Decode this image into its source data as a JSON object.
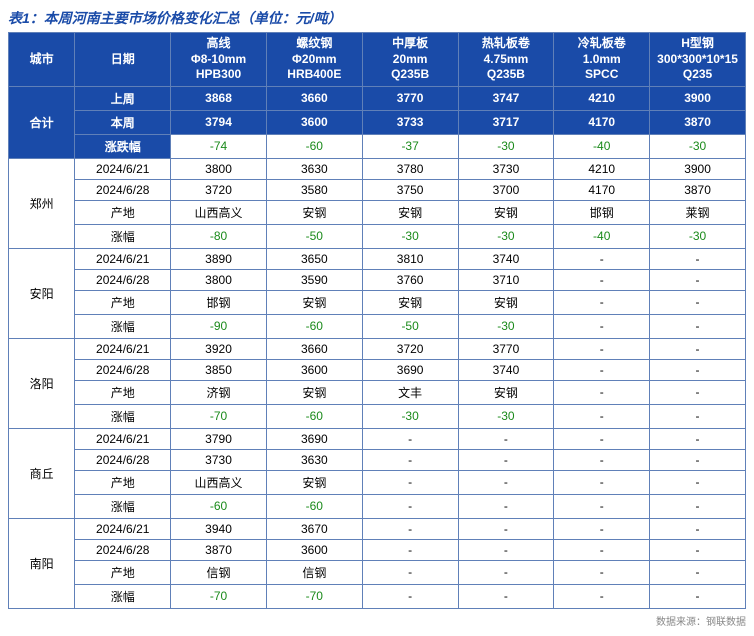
{
  "title": "表1：本周河南主要市场价格变化汇总（单位：元/吨）",
  "source": "数据来源：钢联数据",
  "headers": {
    "city": "城市",
    "date": "日期",
    "p1": "高线\nΦ8-10mm\nHPB300",
    "p2": "螺纹钢\nΦ20mm\nHRB400E",
    "p3": "中厚板\n20mm\nQ235B",
    "p4": "热轧板卷\n4.75mm\nQ235B",
    "p5": "冷轧板卷\n1.0mm\nSPCC",
    "p6": "H型钢\n300*300*10*15\nQ235"
  },
  "summary": {
    "label": "合计",
    "rows": {
      "last": {
        "label": "上周",
        "v": [
          "3868",
          "3660",
          "3770",
          "3747",
          "4210",
          "3900"
        ]
      },
      "this": {
        "label": "本周",
        "v": [
          "3794",
          "3600",
          "3733",
          "3717",
          "4170",
          "3870"
        ]
      },
      "diff": {
        "label": "涨跌幅",
        "v": [
          "-74",
          "-60",
          "-37",
          "-30",
          "-40",
          "-30"
        ]
      }
    }
  },
  "rowLabels": {
    "r1": "2024/6/21",
    "r2": "2024/6/28",
    "r3": "产地",
    "r4": "涨幅"
  },
  "cities": [
    {
      "name": "郑州",
      "r1": [
        "3800",
        "3630",
        "3780",
        "3730",
        "4210",
        "3900"
      ],
      "r2": [
        "3720",
        "3580",
        "3750",
        "3700",
        "4170",
        "3870"
      ],
      "r3": [
        "山西高义",
        "安钢",
        "安钢",
        "安钢",
        "邯钢",
        "莱钢"
      ],
      "r4": [
        "-80",
        "-50",
        "-30",
        "-30",
        "-40",
        "-30"
      ]
    },
    {
      "name": "安阳",
      "r1": [
        "3890",
        "3650",
        "3810",
        "3740",
        "-",
        "-"
      ],
      "r2": [
        "3800",
        "3590",
        "3760",
        "3710",
        "-",
        "-"
      ],
      "r3": [
        "邯钢",
        "安钢",
        "安钢",
        "安钢",
        "-",
        "-"
      ],
      "r4": [
        "-90",
        "-60",
        "-50",
        "-30",
        "-",
        "-"
      ]
    },
    {
      "name": "洛阳",
      "r1": [
        "3920",
        "3660",
        "3720",
        "3770",
        "-",
        "-"
      ],
      "r2": [
        "3850",
        "3600",
        "3690",
        "3740",
        "-",
        "-"
      ],
      "r3": [
        "济钢",
        "安钢",
        "文丰",
        "安钢",
        "-",
        "-"
      ],
      "r4": [
        "-70",
        "-60",
        "-30",
        "-30",
        "-",
        "-"
      ]
    },
    {
      "name": "商丘",
      "r1": [
        "3790",
        "3690",
        "-",
        "-",
        "-",
        "-"
      ],
      "r2": [
        "3730",
        "3630",
        "-",
        "-",
        "-",
        "-"
      ],
      "r3": [
        "山西高义",
        "安钢",
        "-",
        "-",
        "-",
        "-"
      ],
      "r4": [
        "-60",
        "-60",
        "-",
        "-",
        "-",
        "-"
      ]
    },
    {
      "name": "南阳",
      "r1": [
        "3940",
        "3670",
        "-",
        "-",
        "-",
        "-"
      ],
      "r2": [
        "3870",
        "3600",
        "-",
        "-",
        "-",
        "-"
      ],
      "r3": [
        "信钢",
        "信钢",
        "-",
        "-",
        "-",
        "-"
      ],
      "r4": [
        "-70",
        "-70",
        "-",
        "-",
        "-",
        "-"
      ]
    }
  ],
  "colors": {
    "neg": "#1a8a1a"
  }
}
